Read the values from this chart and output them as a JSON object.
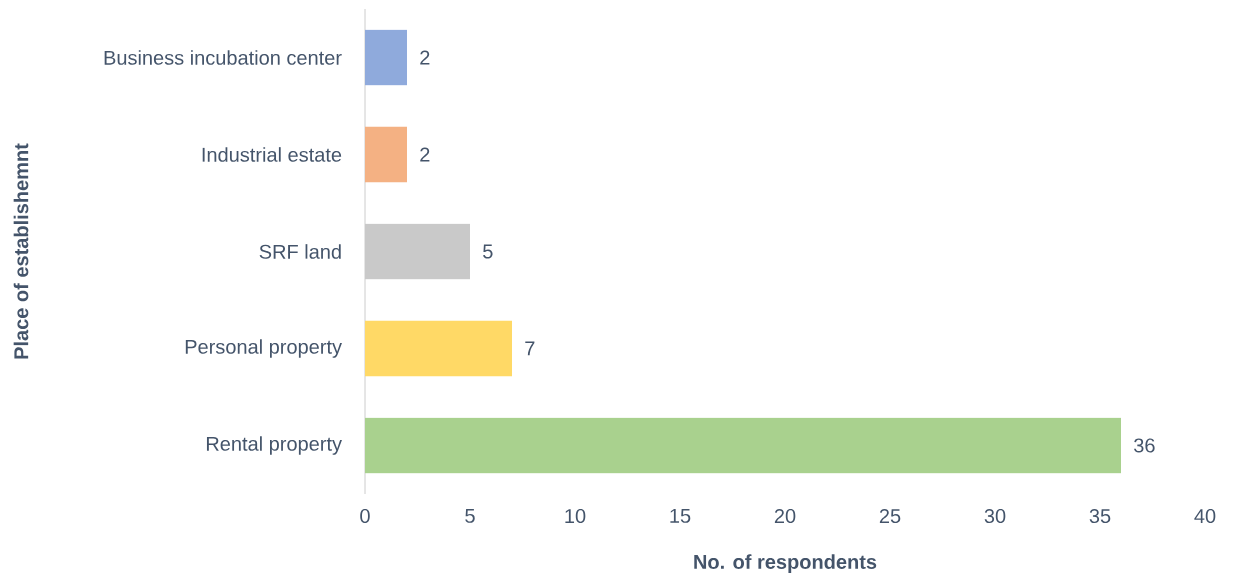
{
  "chart_data": {
    "type": "bar",
    "orientation": "horizontal",
    "xlabel": "No. of respondents",
    "ylabel": "Place of establishemnt",
    "categories": [
      "Business incubation center",
      "Industrial estate",
      "SRF land",
      "Personal property",
      "Rental property"
    ],
    "values": [
      2,
      2,
      5,
      7,
      36
    ],
    "colors": [
      "#8faadc",
      "#f4b183",
      "#c9c9c9",
      "#ffd966",
      "#a9d18e"
    ],
    "xlim": [
      0,
      40
    ],
    "xticks": [
      0,
      5,
      10,
      15,
      20,
      25,
      30,
      35,
      40
    ],
    "data_labels": true
  }
}
